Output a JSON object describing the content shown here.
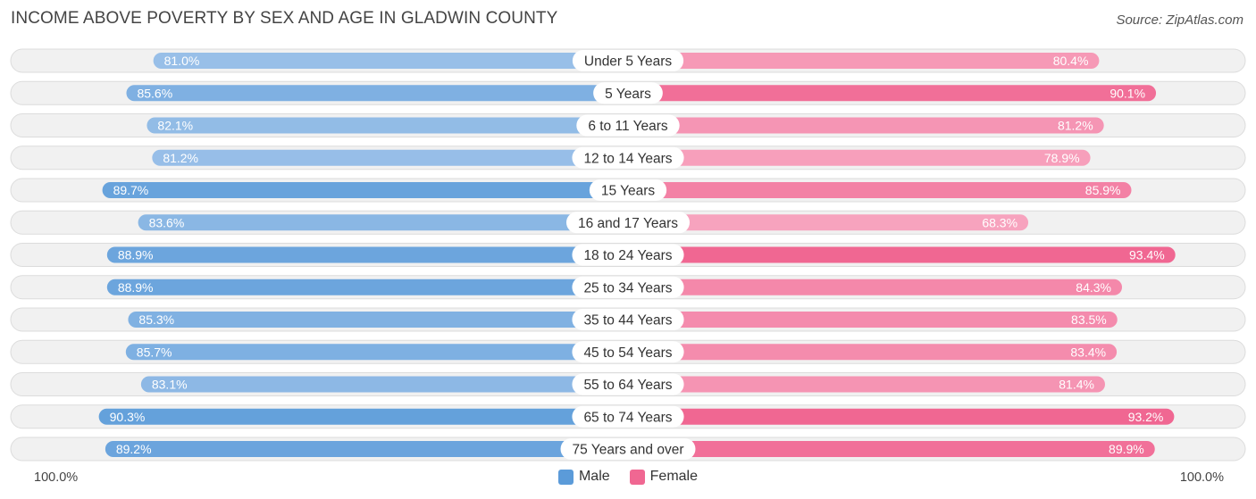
{
  "title": "INCOME ABOVE POVERTY BY SEX AND AGE IN GLADWIN COUNTY",
  "source": "Source: ZipAtlas.com",
  "colors": {
    "male_dark": "#5b9bd9",
    "male_light": "#a9c9ec",
    "female_dark": "#f06792",
    "female_light": "#f7a3be",
    "legend_male": "#5b9bd9",
    "legend_female": "#f06792"
  },
  "legend": {
    "male": "Male",
    "female": "Female"
  },
  "axis": {
    "left_label": "100.0%",
    "right_label": "100.0%"
  },
  "chart_data": {
    "type": "bar",
    "orientation": "horizontal-diverging",
    "title": "INCOME ABOVE POVERTY BY SEX AND AGE IN GLADWIN COUNTY",
    "categories": [
      "Under 5 Years",
      "5 Years",
      "6 to 11 Years",
      "12 to 14 Years",
      "15 Years",
      "16 and 17 Years",
      "18 to 24 Years",
      "25 to 34 Years",
      "35 to 44 Years",
      "45 to 54 Years",
      "55 to 64 Years",
      "65 to 74 Years",
      "75 Years and over"
    ],
    "series": [
      {
        "name": "Male",
        "values": [
          81.0,
          85.6,
          82.1,
          81.2,
          89.7,
          83.6,
          88.9,
          88.9,
          85.3,
          85.7,
          83.1,
          90.3,
          89.2
        ],
        "labels": [
          "81.0%",
          "85.6%",
          "82.1%",
          "81.2%",
          "89.7%",
          "83.6%",
          "88.9%",
          "88.9%",
          "85.3%",
          "85.7%",
          "83.1%",
          "90.3%",
          "89.2%"
        ]
      },
      {
        "name": "Female",
        "values": [
          80.4,
          90.1,
          81.2,
          78.9,
          85.9,
          68.3,
          93.4,
          84.3,
          83.5,
          83.4,
          81.4,
          93.2,
          89.9
        ],
        "labels": [
          "80.4%",
          "90.1%",
          "81.2%",
          "78.9%",
          "85.9%",
          "68.3%",
          "93.4%",
          "84.3%",
          "83.5%",
          "83.4%",
          "81.4%",
          "93.2%",
          "89.9%"
        ]
      }
    ],
    "xlim": [
      0,
      100
    ],
    "xlabel_left": "100.0%",
    "xlabel_right": "100.0%",
    "legend_position": "bottom-center"
  }
}
